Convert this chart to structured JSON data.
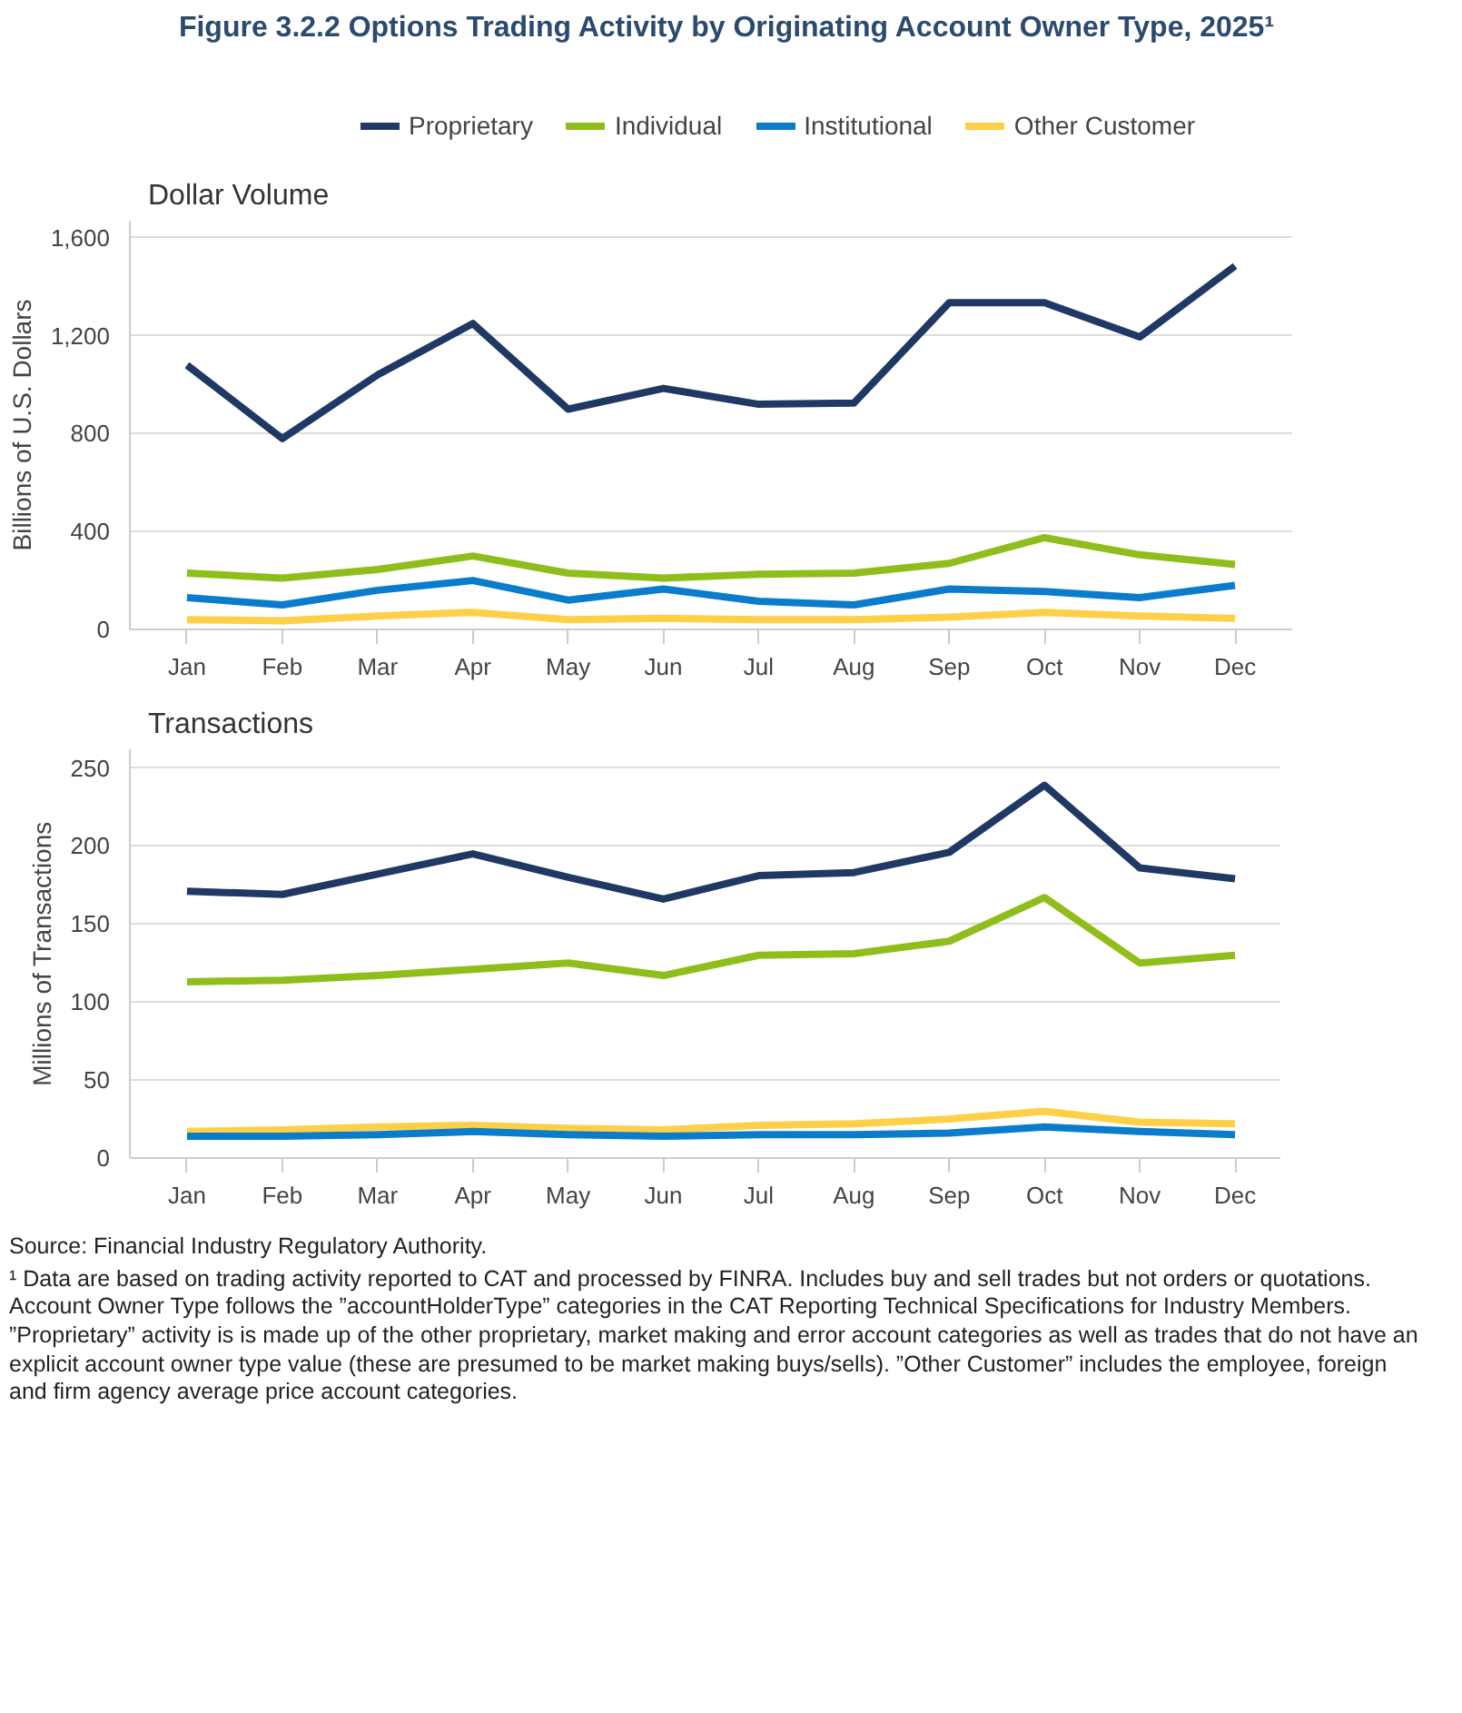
{
  "chart_data": [
    {
      "type": "line",
      "title": "Figure 3.2.2 Options Trading Activity by Originating Account Owner Type, 2025¹",
      "subtitle": "Dollar Volume",
      "ylabel": "Billions of U.S. Dollars",
      "categories": [
        "Jan",
        "Feb",
        "Mar",
        "Apr",
        "May",
        "Jun",
        "Jul",
        "Aug",
        "Sep",
        "Oct",
        "Nov",
        "Dec"
      ],
      "series": [
        {
          "name": "Proprietary",
          "color": "#1f3864",
          "values": [
            1080,
            780,
            1040,
            1250,
            900,
            985,
            920,
            925,
            1335,
            1335,
            1195,
            1485
          ]
        },
        {
          "name": "Individual",
          "color": "#8fbe1a",
          "values": [
            230,
            210,
            245,
            300,
            230,
            210,
            225,
            230,
            270,
            375,
            305,
            265
          ]
        },
        {
          "name": "Institutional",
          "color": "#0a7ccc",
          "values": [
            130,
            100,
            160,
            200,
            120,
            165,
            115,
            100,
            165,
            155,
            130,
            180
          ]
        },
        {
          "name": "Other Customer",
          "color": "#fdd047",
          "values": [
            40,
            35,
            55,
            70,
            40,
            45,
            40,
            40,
            50,
            70,
            55,
            45
          ]
        }
      ],
      "ylim": [
        0,
        1670
      ],
      "yticks": [
        0,
        400,
        800,
        {
          "value": 1200,
          "label": "1,200"
        },
        {
          "value": 1600,
          "label": "1,600"
        }
      ],
      "grid": "y",
      "legend": "top"
    },
    {
      "type": "line",
      "subtitle": "Transactions",
      "ylabel": "Millions of Transactions",
      "categories": [
        "Jan",
        "Feb",
        "Mar",
        "Apr",
        "May",
        "Jun",
        "Jul",
        "Aug",
        "Sep",
        "Oct",
        "Nov",
        "Dec"
      ],
      "series": [
        {
          "color": "#1f3864",
          "values": [
            171,
            169,
            182,
            195,
            180,
            166,
            181,
            183,
            196,
            239,
            186,
            179
          ]
        },
        {
          "color": "#8fbe1a",
          "values": [
            113,
            114,
            117,
            121,
            125,
            117,
            130,
            131,
            139,
            167,
            125,
            130
          ]
        },
        {
          "color": "#fdd047",
          "values": [
            17,
            18,
            20,
            21,
            19,
            18,
            21,
            22,
            25,
            30,
            23,
            22
          ]
        },
        {
          "color": "#0a7ccc",
          "values": [
            14,
            14,
            15,
            17,
            15,
            14,
            15,
            15,
            16,
            20,
            17,
            15
          ]
        }
      ],
      "ylim": [
        0,
        262
      ],
      "yticks": [
        0,
        50,
        100,
        150,
        200,
        250
      ],
      "grid": "y",
      "annotations": [
        "Source: Financial Industry Regulatory Authority.",
        "¹ Data are based on trading activity reported to CAT and processed by FINRA. Includes buy and sell trades but not orders or quotations. Account Owner Type follows the ”accountHolderType” categories in the CAT Reporting Technical Specifications for Industry Members. ”Proprietary” activity is is made up of the other proprietary, market making and error account categories as well as trades that do not have an explicit account owner type value (these are presumed to be market making buys/sells). ”Other Customer” includes the employee, foreign and firm agency average price account categories."
      ]
    }
  ]
}
